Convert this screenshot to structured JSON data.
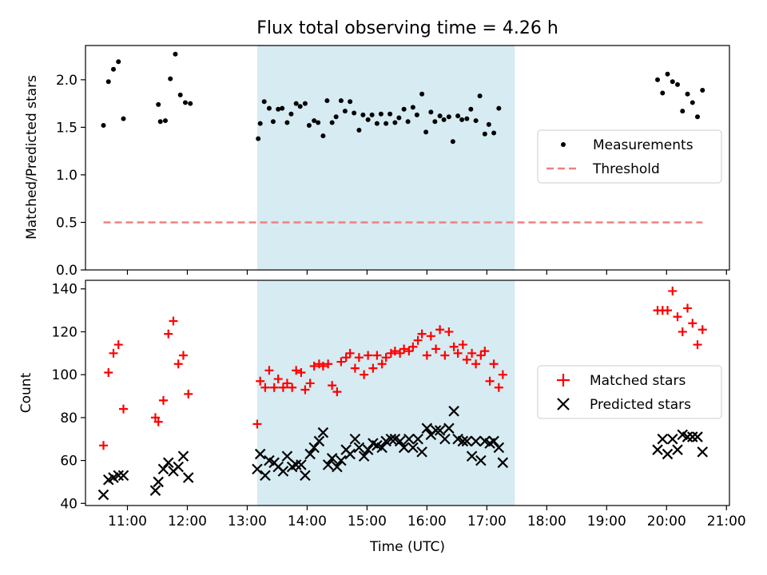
{
  "title": "Flux total observing time = 4.26 h",
  "colors": {
    "shade": "#add8e6",
    "threshold": "#f08080",
    "matched": "#ff0000",
    "predicted": "#000000",
    "measure": "#000000"
  },
  "chart_data": [
    {
      "type": "scatter",
      "ylabel": "Matched/Predicted stars",
      "ylim": [
        0.0,
        2.36
      ],
      "yticks": [
        0.0,
        0.5,
        1.0,
        1.5,
        2.0
      ],
      "ytick_labels": [
        "0.0",
        "0.5",
        "1.0",
        "1.5",
        "2.0"
      ],
      "xlim": [
        10.3,
        21.05
      ],
      "shaded_interval": [
        "13:10",
        "17:28"
      ],
      "legend": {
        "placement": "center-right",
        "entries": [
          "Measurements",
          "Threshold"
        ]
      },
      "threshold": {
        "name": "Threshold",
        "value": 0.5,
        "x": [
          "10:36",
          "20:36"
        ]
      },
      "series": [
        {
          "name": "Measurements",
          "marker": "dot",
          "points": [
            [
              "10:36",
              1.52
            ],
            [
              "10:41",
              1.98
            ],
            [
              "10:46",
              2.11
            ],
            [
              "10:51",
              2.19
            ],
            [
              "10:56",
              1.59
            ],
            [
              "11:31",
              1.74
            ],
            [
              "11:33",
              1.56
            ],
            [
              "11:38",
              1.57
            ],
            [
              "11:43",
              2.01
            ],
            [
              "11:48",
              2.27
            ],
            [
              "11:53",
              1.84
            ],
            [
              "11:58",
              1.76
            ],
            [
              "12:03",
              1.75
            ],
            [
              "13:11",
              1.38
            ],
            [
              "13:13",
              1.54
            ],
            [
              "13:17",
              1.77
            ],
            [
              "13:22",
              1.7
            ],
            [
              "13:26",
              1.56
            ],
            [
              "13:31",
              1.69
            ],
            [
              "13:35",
              1.7
            ],
            [
              "13:40",
              1.55
            ],
            [
              "13:44",
              1.64
            ],
            [
              "13:49",
              1.75
            ],
            [
              "13:53",
              1.72
            ],
            [
              "13:58",
              1.75
            ],
            [
              "14:02",
              1.52
            ],
            [
              "14:07",
              1.57
            ],
            [
              "14:11",
              1.55
            ],
            [
              "14:16",
              1.41
            ],
            [
              "14:20",
              1.78
            ],
            [
              "14:25",
              1.55
            ],
            [
              "14:29",
              1.61
            ],
            [
              "14:34",
              1.78
            ],
            [
              "14:38",
              1.67
            ],
            [
              "14:43",
              1.77
            ],
            [
              "14:47",
              1.65
            ],
            [
              "14:52",
              1.47
            ],
            [
              "14:56",
              1.63
            ],
            [
              "15:01",
              1.58
            ],
            [
              "15:05",
              1.63
            ],
            [
              "15:10",
              1.54
            ],
            [
              "15:14",
              1.64
            ],
            [
              "15:19",
              1.54
            ],
            [
              "15:23",
              1.64
            ],
            [
              "15:28",
              1.55
            ],
            [
              "15:32",
              1.6
            ],
            [
              "15:37",
              1.69
            ],
            [
              "15:41",
              1.56
            ],
            [
              "15:46",
              1.71
            ],
            [
              "15:50",
              1.63
            ],
            [
              "15:55",
              1.85
            ],
            [
              "15:59",
              1.45
            ],
            [
              "16:04",
              1.66
            ],
            [
              "16:08",
              1.56
            ],
            [
              "16:13",
              1.62
            ],
            [
              "16:17",
              1.58
            ],
            [
              "16:22",
              1.61
            ],
            [
              "16:26",
              1.35
            ],
            [
              "16:31",
              1.62
            ],
            [
              "16:35",
              1.58
            ],
            [
              "16:40",
              1.59
            ],
            [
              "16:44",
              1.69
            ],
            [
              "16:49",
              1.57
            ],
            [
              "16:53",
              1.83
            ],
            [
              "16:58",
              1.43
            ],
            [
              "17:02",
              1.53
            ],
            [
              "17:07",
              1.44
            ],
            [
              "17:12",
              1.7
            ],
            [
              "19:51",
              2.0
            ],
            [
              "19:56",
              1.86
            ],
            [
              "20:01",
              2.06
            ],
            [
              "20:06",
              1.98
            ],
            [
              "20:11",
              1.95
            ],
            [
              "20:16",
              1.67
            ],
            [
              "20:21",
              1.85
            ],
            [
              "20:26",
              1.76
            ],
            [
              "20:31",
              1.61
            ],
            [
              "20:36",
              1.89
            ]
          ]
        }
      ]
    },
    {
      "type": "scatter",
      "xlabel": "Time (UTC)",
      "ylabel": "Count",
      "ylim": [
        39,
        144
      ],
      "yticks": [
        40,
        60,
        80,
        100,
        120,
        140
      ],
      "ytick_labels": [
        "40",
        "60",
        "80",
        "100",
        "120",
        "140"
      ],
      "xlim": [
        10.3,
        21.05
      ],
      "xticks": [
        "11:00",
        "12:00",
        "13:00",
        "14:00",
        "15:00",
        "16:00",
        "17:00",
        "18:00",
        "19:00",
        "20:00",
        "21:00"
      ],
      "shaded_interval": [
        "13:10",
        "17:28"
      ],
      "legend": {
        "placement": "center-right",
        "entries": [
          "Matched stars",
          "Predicted stars"
        ]
      },
      "series": [
        {
          "name": "Matched stars",
          "marker": "plus",
          "points": [
            [
              "10:36",
              67
            ],
            [
              "10:41",
              101
            ],
            [
              "10:46",
              110
            ],
            [
              "10:51",
              114
            ],
            [
              "10:56",
              84
            ],
            [
              "11:28",
              80
            ],
            [
              "11:31",
              78
            ],
            [
              "11:36",
              88
            ],
            [
              "11:41",
              119
            ],
            [
              "11:46",
              125
            ],
            [
              "11:51",
              105
            ],
            [
              "11:56",
              109
            ],
            [
              "12:01",
              91
            ],
            [
              "13:10",
              77
            ],
            [
              "13:13",
              97
            ],
            [
              "13:18",
              94
            ],
            [
              "13:22",
              102
            ],
            [
              "13:27",
              94
            ],
            [
              "13:31",
              98
            ],
            [
              "13:36",
              94
            ],
            [
              "13:40",
              96
            ],
            [
              "13:45",
              94
            ],
            [
              "13:49",
              102
            ],
            [
              "13:54",
              101
            ],
            [
              "13:58",
              93
            ],
            [
              "14:03",
              96
            ],
            [
              "14:07",
              104
            ],
            [
              "14:12",
              105
            ],
            [
              "14:16",
              104
            ],
            [
              "14:21",
              105
            ],
            [
              "14:25",
              95
            ],
            [
              "14:30",
              92
            ],
            [
              "14:34",
              106
            ],
            [
              "14:39",
              108
            ],
            [
              "14:43",
              110
            ],
            [
              "14:48",
              103
            ],
            [
              "14:52",
              108
            ],
            [
              "14:57",
              100
            ],
            [
              "15:01",
              109
            ],
            [
              "15:06",
              103
            ],
            [
              "15:10",
              109
            ],
            [
              "15:15",
              105
            ],
            [
              "15:19",
              108
            ],
            [
              "15:24",
              110
            ],
            [
              "15:28",
              111
            ],
            [
              "15:33",
              110
            ],
            [
              "15:37",
              112
            ],
            [
              "15:42",
              111
            ],
            [
              "15:46",
              113
            ],
            [
              "15:51",
              116
            ],
            [
              "15:55",
              119
            ],
            [
              "16:00",
              109
            ],
            [
              "16:04",
              118
            ],
            [
              "16:09",
              112
            ],
            [
              "16:13",
              121
            ],
            [
              "16:18",
              109
            ],
            [
              "16:22",
              120
            ],
            [
              "16:27",
              113
            ],
            [
              "16:31",
              110
            ],
            [
              "16:36",
              114
            ],
            [
              "16:40",
              107
            ],
            [
              "16:45",
              110
            ],
            [
              "16:49",
              105
            ],
            [
              "16:54",
              109
            ],
            [
              "16:58",
              111
            ],
            [
              "17:03",
              97
            ],
            [
              "17:07",
              105
            ],
            [
              "17:12",
              94
            ],
            [
              "17:16",
              100
            ],
            [
              "19:51",
              130
            ],
            [
              "19:56",
              130
            ],
            [
              "20:01",
              130
            ],
            [
              "20:06",
              139
            ],
            [
              "20:11",
              127
            ],
            [
              "20:16",
              120
            ],
            [
              "20:21",
              131
            ],
            [
              "20:26",
              124
            ],
            [
              "20:31",
              114
            ],
            [
              "20:36",
              121
            ]
          ]
        },
        {
          "name": "Predicted stars",
          "marker": "x",
          "points": [
            [
              "10:36",
              44
            ],
            [
              "10:41",
              51
            ],
            [
              "10:46",
              52
            ],
            [
              "10:51",
              53
            ],
            [
              "10:56",
              53
            ],
            [
              "11:28",
              46
            ],
            [
              "11:31",
              50
            ],
            [
              "11:36",
              56
            ],
            [
              "11:41",
              59
            ],
            [
              "11:46",
              55
            ],
            [
              "11:51",
              57
            ],
            [
              "11:56",
              62
            ],
            [
              "12:01",
              52
            ],
            [
              "13:10",
              56
            ],
            [
              "13:13",
              63
            ],
            [
              "13:18",
              53
            ],
            [
              "13:22",
              60
            ],
            [
              "13:27",
              59
            ],
            [
              "13:31",
              57
            ],
            [
              "13:36",
              55
            ],
            [
              "13:40",
              62
            ],
            [
              "13:45",
              57
            ],
            [
              "13:49",
              58
            ],
            [
              "13:54",
              58
            ],
            [
              "13:58",
              53
            ],
            [
              "14:03",
              63
            ],
            [
              "14:07",
              66
            ],
            [
              "14:12",
              69
            ],
            [
              "14:16",
              73
            ],
            [
              "14:21",
              58
            ],
            [
              "14:25",
              61
            ],
            [
              "14:30",
              57
            ],
            [
              "14:34",
              60
            ],
            [
              "14:39",
              65
            ],
            [
              "14:43",
              63
            ],
            [
              "14:48",
              70
            ],
            [
              "14:52",
              66
            ],
            [
              "14:57",
              62
            ],
            [
              "15:01",
              65
            ],
            [
              "15:06",
              68
            ],
            [
              "15:10",
              67
            ],
            [
              "15:15",
              66
            ],
            [
              "15:19",
              69
            ],
            [
              "15:24",
              70
            ],
            [
              "15:28",
              70
            ],
            [
              "15:33",
              69
            ],
            [
              "15:37",
              66
            ],
            [
              "15:42",
              70
            ],
            [
              "15:46",
              66
            ],
            [
              "15:51",
              70
            ],
            [
              "15:55",
              64
            ],
            [
              "16:00",
              75
            ],
            [
              "16:04",
              72
            ],
            [
              "16:09",
              74
            ],
            [
              "16:13",
              74
            ],
            [
              "16:18",
              70
            ],
            [
              "16:22",
              75
            ],
            [
              "16:27",
              83
            ],
            [
              "16:31",
              70
            ],
            [
              "16:36",
              69
            ],
            [
              "16:40",
              69
            ],
            [
              "16:45",
              62
            ],
            [
              "16:49",
              69
            ],
            [
              "16:54",
              60
            ],
            [
              "16:58",
              69
            ],
            [
              "17:03",
              68
            ],
            [
              "17:07",
              69
            ],
            [
              "17:12",
              66
            ],
            [
              "17:16",
              59
            ],
            [
              "19:51",
              65
            ],
            [
              "19:56",
              70
            ],
            [
              "20:01",
              63
            ],
            [
              "20:06",
              70
            ],
            [
              "20:11",
              65
            ],
            [
              "20:16",
              72
            ],
            [
              "20:21",
              71
            ],
            [
              "20:26",
              71
            ],
            [
              "20:31",
              71
            ],
            [
              "20:36",
              64
            ]
          ]
        }
      ]
    }
  ]
}
